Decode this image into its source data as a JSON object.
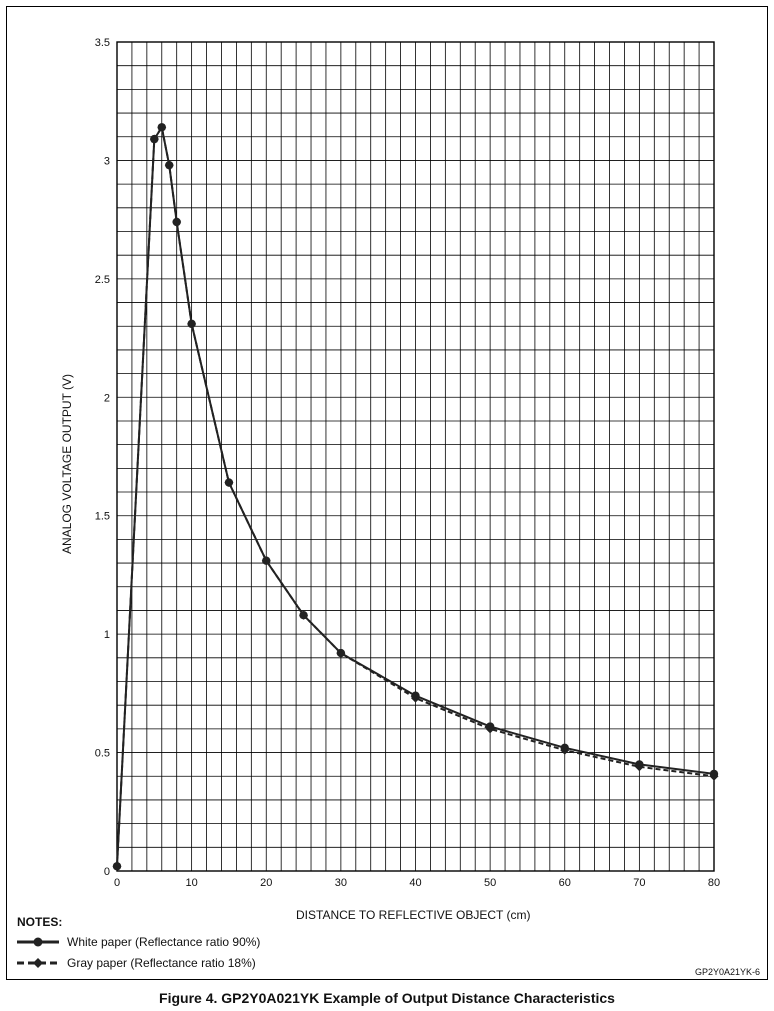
{
  "chart_data": {
    "type": "line",
    "xlabel": "DISTANCE TO REFLECTIVE OBJECT (cm)",
    "ylabel": "ANALOG VOLTAGE OUTPUT (V)",
    "xlim": [
      0,
      80
    ],
    "ylim": [
      0,
      3.5
    ],
    "x_ticks": [
      "0",
      "10",
      "20",
      "30",
      "40",
      "50",
      "60",
      "70",
      "80"
    ],
    "y_ticks": [
      "0",
      "0.5",
      "1",
      "1.5",
      "2",
      "2.5",
      "3",
      "3.5"
    ],
    "grid": true,
    "series": [
      {
        "name": "White paper (Reflectance ratio 90%)",
        "marker": "circle",
        "line": "solid",
        "x": [
          0,
          5,
          6,
          7,
          8,
          10,
          15,
          20,
          25,
          30,
          40,
          50,
          60,
          70,
          80
        ],
        "y": [
          0.02,
          3.09,
          3.14,
          2.98,
          2.74,
          2.31,
          1.64,
          1.31,
          1.08,
          0.92,
          0.74,
          0.61,
          0.52,
          0.45,
          0.41
        ]
      },
      {
        "name": "Gray paper (Reflectance ratio 18%)",
        "marker": "diamond",
        "line": "dashed",
        "x": [
          0,
          5,
          6,
          7,
          8,
          10,
          15,
          20,
          25,
          30,
          40,
          50,
          60,
          70,
          80
        ],
        "y": [
          0.02,
          3.09,
          3.14,
          2.98,
          2.74,
          2.31,
          1.64,
          1.31,
          1.08,
          0.92,
          0.73,
          0.6,
          0.51,
          0.44,
          0.4
        ]
      }
    ]
  },
  "notes_title": "NOTES:",
  "legend": {
    "white": "White paper (Reflectance ratio 90%)",
    "gray": "Gray paper (Reflectance ratio 18%)"
  },
  "figure_id": "GP2Y0A21YK-6",
  "caption": "Figure 4.  GP2Y0A021YK Example of Output Distance Characteristics"
}
